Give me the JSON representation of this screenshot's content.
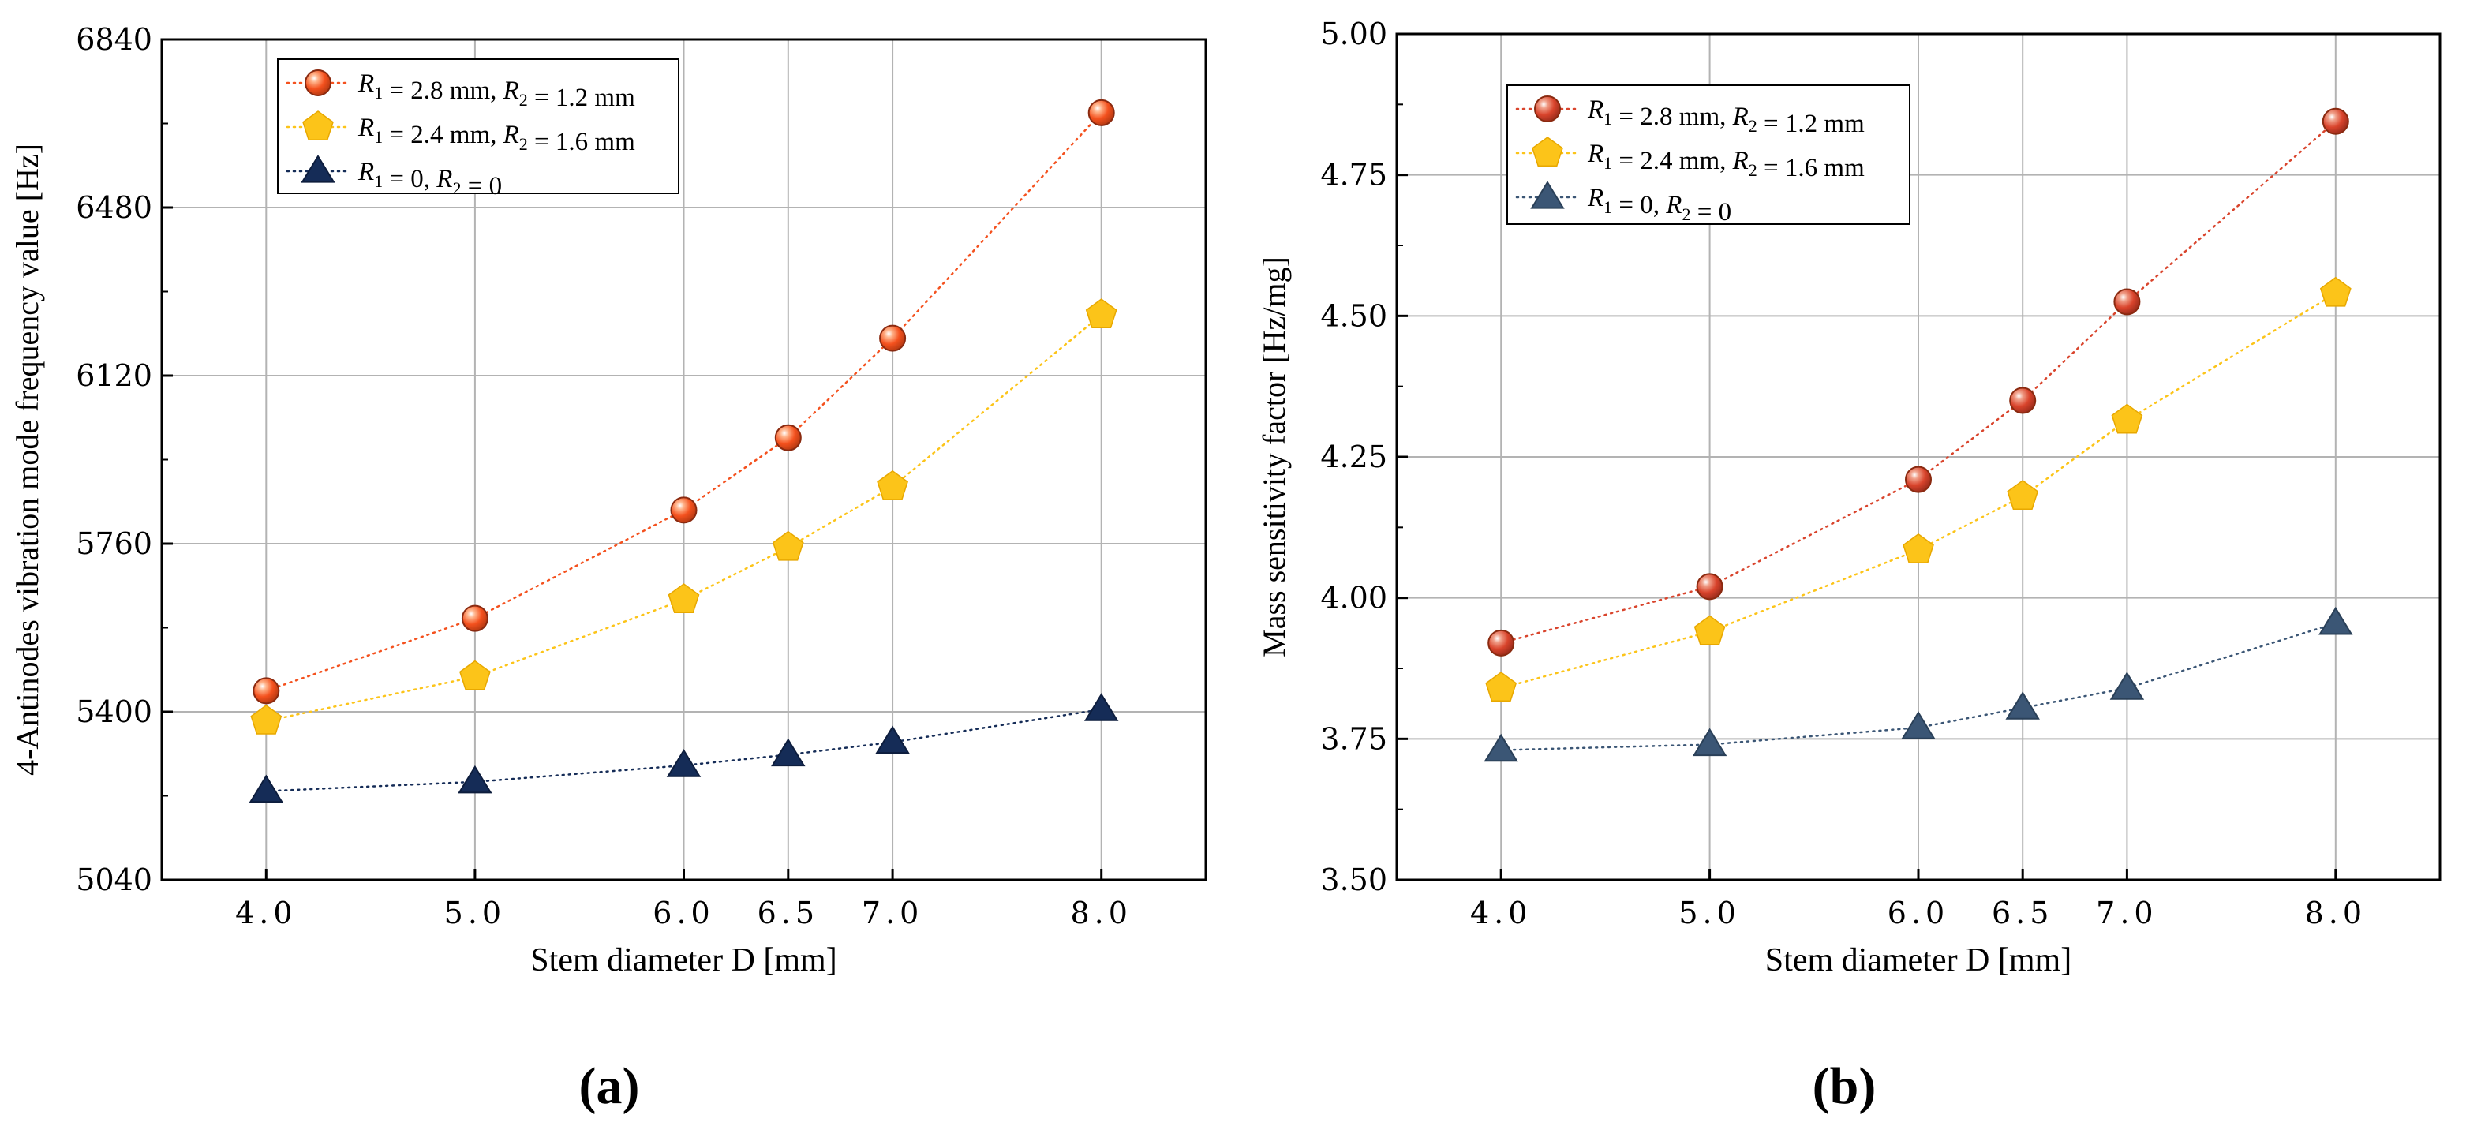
{
  "figure": {
    "panel_labels": [
      "(a)",
      "(b)"
    ]
  },
  "chart_data": [
    {
      "type": "line",
      "panel": "(a)",
      "title": "",
      "xlabel": "Stem diameter D [mm]",
      "ylabel": "4-Antinodes  vibration mode frequency value [Hz]",
      "x": [
        4.0,
        5.0,
        6.0,
        6.5,
        7.0,
        8.0
      ],
      "x_tick_labels": [
        "4.0",
        "5.0",
        "6.0",
        "6.5",
        "7.0",
        "8.0"
      ],
      "xlim": [
        3.5,
        8.5
      ],
      "ylim": [
        5040,
        6840
      ],
      "y_ticks": [
        5040,
        5400,
        5760,
        6120,
        6480,
        6840
      ],
      "grid": true,
      "legend_position": "top-left",
      "series": [
        {
          "name": "R1 = 2.8 mm, R2 = 1.2 mm",
          "r1": "2.8 mm",
          "r2": "1.2 mm",
          "marker": "sphere",
          "color": "#f4511e",
          "values": [
            5445,
            5600,
            5832,
            5987,
            6200,
            6683
          ]
        },
        {
          "name": "R1 = 2.4 mm, R2 = 1.6 mm",
          "r1": "2.4 mm",
          "r2": "1.6 mm",
          "marker": "pentagon",
          "color": "#fcc419",
          "values": [
            5380,
            5475,
            5640,
            5752,
            5882,
            6250
          ]
        },
        {
          "name": "R1 = 0, R2 = 0",
          "r1": "0",
          "r2": "0",
          "marker": "triangle",
          "color": "#152c57",
          "values": [
            5230,
            5250,
            5285,
            5308,
            5335,
            5405
          ]
        }
      ]
    },
    {
      "type": "line",
      "panel": "(b)",
      "title": "",
      "xlabel": "Stem diameter D [mm]",
      "ylabel": "Mass sensitivity factor [Hz/mg]",
      "x": [
        4.0,
        5.0,
        6.0,
        6.5,
        7.0,
        8.0
      ],
      "x_tick_labels": [
        "4.0",
        "5.0",
        "6.0",
        "6.5",
        "7.0",
        "8.0"
      ],
      "xlim": [
        3.5,
        8.5
      ],
      "ylim": [
        3.5,
        5.0
      ],
      "y_ticks": [
        3.5,
        3.75,
        4.0,
        4.25,
        4.5,
        4.75,
        5.0
      ],
      "y_tick_labels": [
        "3.50",
        "3.75",
        "4.00",
        "4.25",
        "4.50",
        "4.75",
        "5.00"
      ],
      "grid": true,
      "legend_position": "top-left",
      "series": [
        {
          "name": "R1 = 2.8 mm, R2 = 1.2 mm",
          "r1": "2.8 mm",
          "r2": "1.2 mm",
          "marker": "sphere",
          "color": "#d9442c",
          "values": [
            3.92,
            4.02,
            4.21,
            4.35,
            4.525,
            4.845
          ]
        },
        {
          "name": "R1 = 2.4 mm, R2 = 1.6 mm",
          "r1": "2.4 mm",
          "r2": "1.6 mm",
          "marker": "pentagon",
          "color": "#fcc419",
          "values": [
            3.84,
            3.94,
            4.085,
            4.18,
            4.315,
            4.54
          ]
        },
        {
          "name": "R1 = 0, R2 = 0",
          "r1": "0",
          "r2": "0",
          "marker": "triangle",
          "color": "#3b5675",
          "values": [
            3.73,
            3.74,
            3.77,
            3.805,
            3.84,
            3.955
          ]
        }
      ]
    }
  ]
}
